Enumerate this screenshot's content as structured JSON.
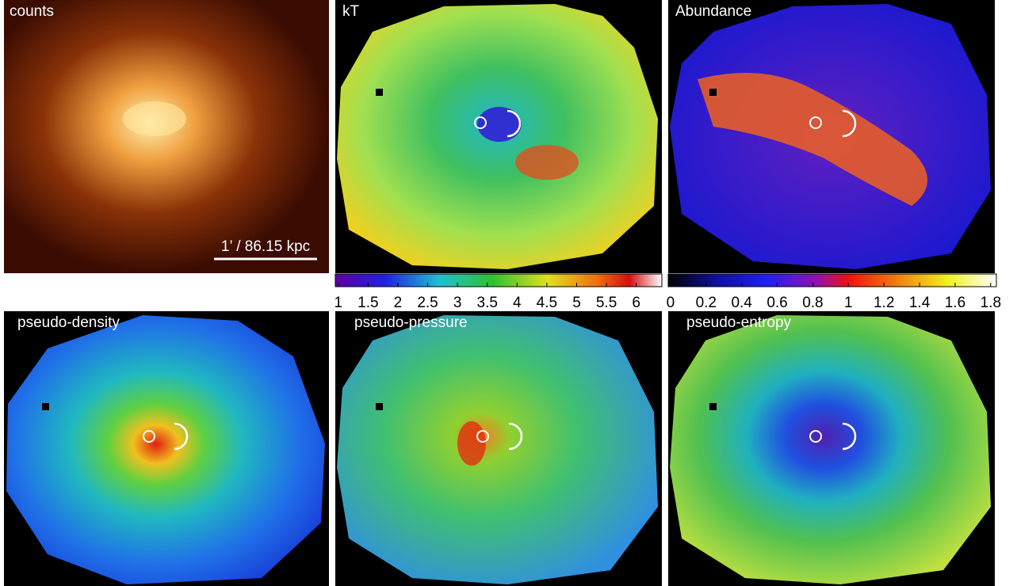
{
  "panels": [
    {
      "title": "counts",
      "scale_bar": "1’ / 86.15 kpc"
    },
    {
      "title": "kT"
    },
    {
      "title": "Abundance"
    },
    {
      "title": "pseudo-density"
    },
    {
      "title": "pseudo-pressure"
    },
    {
      "title": "pseudo-entropy"
    }
  ],
  "colorbars": [
    {
      "lim": [
        0.95,
        6.43
      ],
      "ticks": [
        1,
        1.5,
        2,
        2.5,
        3,
        3.5,
        4,
        4.5,
        5,
        5.5,
        6
      ]
    },
    {
      "lim": [
        -0.013,
        1.832
      ],
      "ticks": [
        0,
        0.2,
        0.4,
        0.6,
        0.8,
        1,
        1.2,
        1.4,
        1.6,
        1.8
      ]
    }
  ]
}
